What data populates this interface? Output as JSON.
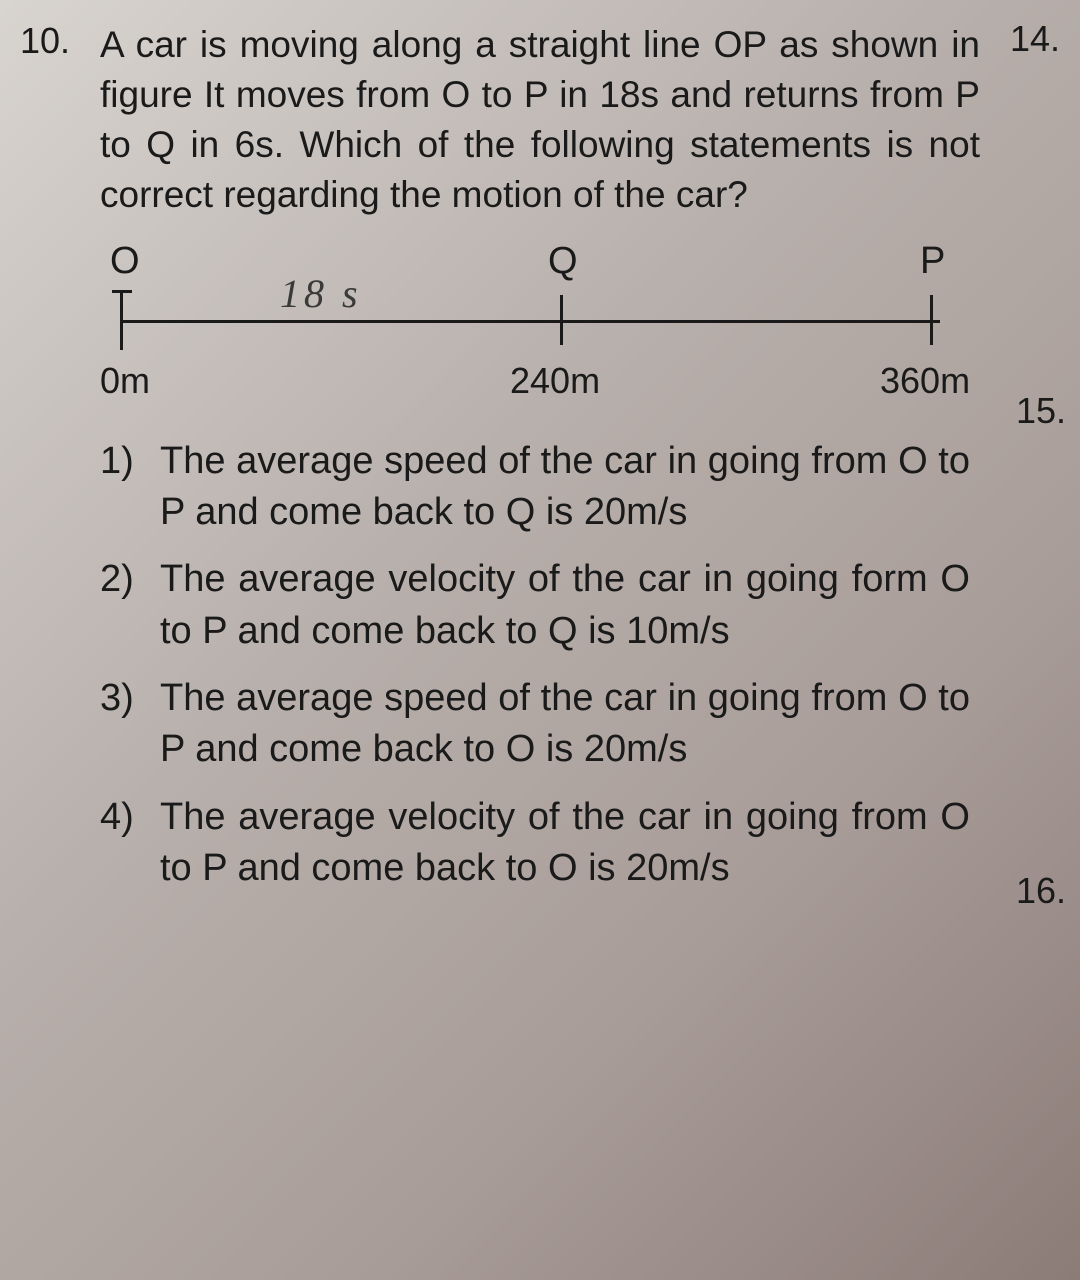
{
  "question": {
    "number": "10.",
    "stem": "A car is moving along a straight line OP as shown in figure  It moves from O to P in 18s and returns from P to Q in 6s. Which of the following statements is not correct regarding the motion of the car?"
  },
  "right_numbers": {
    "n14": "14.",
    "n15": "15.",
    "n16": "16."
  },
  "diagram": {
    "points": {
      "O": {
        "top": "O",
        "bottom": "0m"
      },
      "Q": {
        "top": "Q",
        "bottom": "240m"
      },
      "P": {
        "top": "P",
        "bottom": "360m"
      }
    },
    "handwritten": "18 s",
    "line_color": "#1a1a1a"
  },
  "options": [
    {
      "num": "1)",
      "text": "The average speed of the car in going from  O to P and come back to Q is 20m/s"
    },
    {
      "num": "2)",
      "text": "The average velocity of the car in going form O to P and come back to Q is 10m/s"
    },
    {
      "num": "3)",
      "text": "The average speed of the car in going from O to P and come back to O is 20m/s"
    },
    {
      "num": "4)",
      "text": "The average velocity of the car in going from O to P and come back to O is 20m/s"
    }
  ],
  "colors": {
    "text": "#1a1a1a",
    "bg_light": "#d8d4d0",
    "bg_dark": "#8c7c78"
  },
  "typography": {
    "body_fontsize": 37,
    "option_fontsize": 38,
    "label_fontsize": 38
  }
}
